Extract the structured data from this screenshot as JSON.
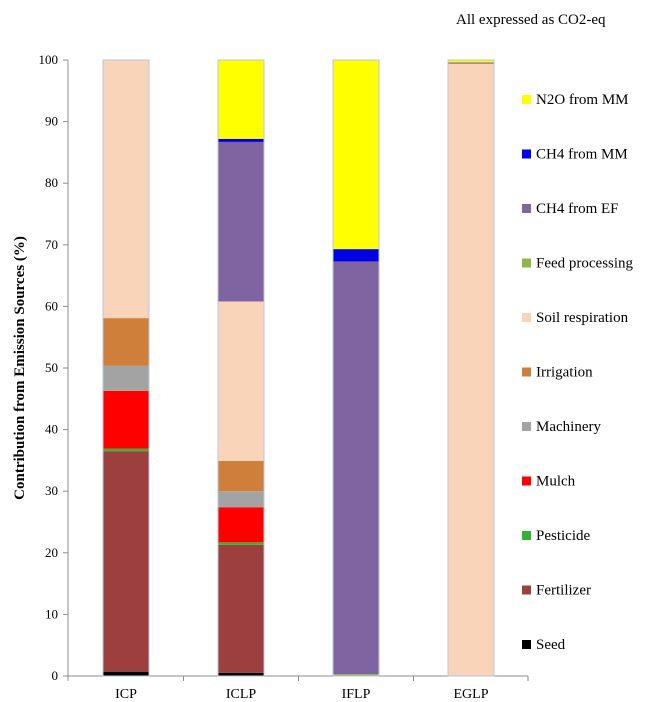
{
  "chart_data": {
    "type": "bar",
    "stacked": true,
    "note": "All expressed as CO2-eq",
    "title": "",
    "xlabel": "",
    "ylabel": "Contribution from Emission Sources (%)",
    "ylim": [
      0,
      100
    ],
    "yticks": [
      0,
      10,
      20,
      30,
      40,
      50,
      60,
      70,
      80,
      90,
      100
    ],
    "grid": false,
    "legend_position": "right",
    "categories": [
      "ICP",
      "ICLP",
      "IFLP",
      "EGLP"
    ],
    "series": [
      {
        "name": "Seed",
        "color": "#000000",
        "values": [
          0.7,
          0.5,
          0,
          0
        ]
      },
      {
        "name": "Fertilizer",
        "color": "#9e3f3f",
        "values": [
          35.8,
          20.8,
          0,
          0
        ]
      },
      {
        "name": "Pesticide",
        "color": "#33b233",
        "values": [
          0.4,
          0.4,
          0,
          0
        ]
      },
      {
        "name": "Mulch",
        "color": "#ff0000",
        "values": [
          9.4,
          5.7,
          0,
          0
        ]
      },
      {
        "name": "Machinery",
        "color": "#a3a3a3",
        "values": [
          4.1,
          2.6,
          0,
          0
        ]
      },
      {
        "name": "Irrigation",
        "color": "#cf7f3a",
        "values": [
          7.7,
          4.9,
          0,
          0
        ]
      },
      {
        "name": "Soil respiration",
        "color": "#fad4b8",
        "values": [
          41.9,
          25.9,
          0,
          99.4
        ]
      },
      {
        "name": "Feed processing",
        "color": "#8fb84a",
        "values": [
          0,
          0,
          0.3,
          0
        ]
      },
      {
        "name": "CH4 from EF",
        "color": "#8064a2",
        "values": [
          0,
          25.9,
          67.0,
          0.2
        ]
      },
      {
        "name": "CH4 from MM",
        "color": "#0000e6",
        "values": [
          0,
          0.5,
          2.0,
          0
        ]
      },
      {
        "name": "N2O from MM",
        "color": "#ffff00",
        "values": [
          0,
          12.8,
          30.7,
          0.4
        ]
      }
    ]
  }
}
